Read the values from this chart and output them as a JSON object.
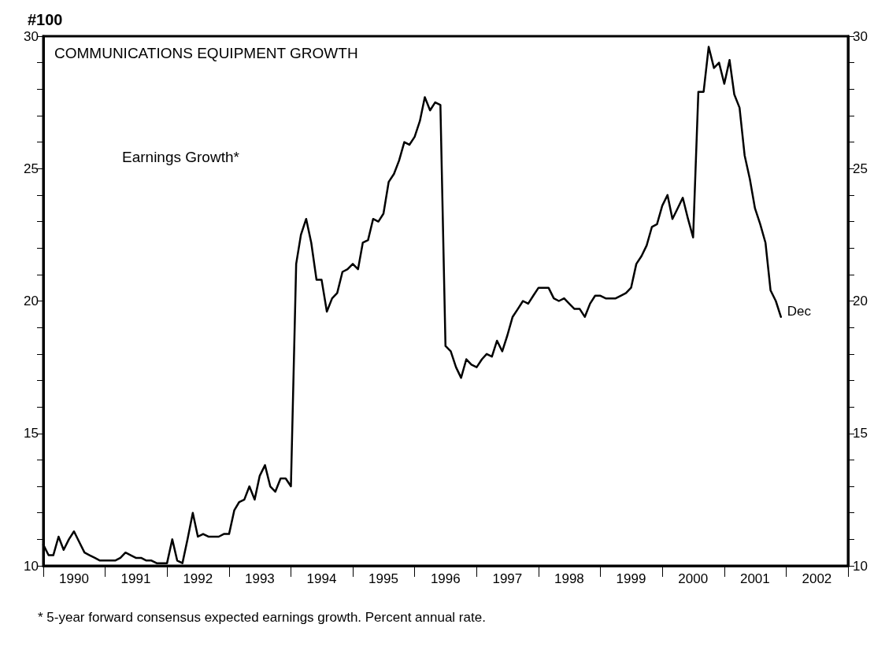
{
  "chart_data": {
    "type": "line",
    "title": "#100",
    "subtitle": "COMMUNICATIONS EQUIPMENT GROWTH",
    "x": [
      "1990-01",
      "1990-02",
      "1990-03",
      "1990-04",
      "1990-05",
      "1990-06",
      "1990-07",
      "1990-08",
      "1990-09",
      "1990-10",
      "1990-11",
      "1990-12",
      "1991-01",
      "1991-02",
      "1991-03",
      "1991-04",
      "1991-05",
      "1991-06",
      "1991-07",
      "1991-08",
      "1991-09",
      "1991-10",
      "1991-11",
      "1991-12",
      "1992-01",
      "1992-02",
      "1992-03",
      "1992-04",
      "1992-05",
      "1992-06",
      "1992-07",
      "1992-08",
      "1992-09",
      "1992-10",
      "1992-11",
      "1992-12",
      "1993-01",
      "1993-02",
      "1993-03",
      "1993-04",
      "1993-05",
      "1993-06",
      "1993-07",
      "1993-08",
      "1993-09",
      "1993-10",
      "1993-11",
      "1993-12",
      "1994-01",
      "1994-02",
      "1994-03",
      "1994-04",
      "1994-05",
      "1994-06",
      "1994-07",
      "1994-08",
      "1994-09",
      "1994-10",
      "1994-11",
      "1994-12",
      "1995-01",
      "1995-02",
      "1995-03",
      "1995-04",
      "1995-05",
      "1995-06",
      "1995-07",
      "1995-08",
      "1995-09",
      "1995-10",
      "1995-11",
      "1995-12",
      "1996-01",
      "1996-02",
      "1996-03",
      "1996-04",
      "1996-05",
      "1996-06",
      "1996-07",
      "1996-08",
      "1996-09",
      "1996-10",
      "1996-11",
      "1996-12",
      "1997-01",
      "1997-02",
      "1997-03",
      "1997-04",
      "1997-05",
      "1997-06",
      "1997-07",
      "1997-08",
      "1997-09",
      "1997-10",
      "1997-11",
      "1997-12",
      "1998-01",
      "1998-02",
      "1998-03",
      "1998-04",
      "1998-05",
      "1998-06",
      "1998-07",
      "1998-08",
      "1998-09",
      "1998-10",
      "1998-11",
      "1998-12",
      "1999-01",
      "1999-02",
      "1999-03",
      "1999-04",
      "1999-05",
      "1999-06",
      "1999-07",
      "1999-08",
      "1999-09",
      "1999-10",
      "1999-11",
      "1999-12",
      "2000-01",
      "2000-02",
      "2000-03",
      "2000-04",
      "2000-05",
      "2000-06",
      "2000-07",
      "2000-08",
      "2000-09",
      "2000-10",
      "2000-11",
      "2000-12",
      "2001-01",
      "2001-02",
      "2001-03",
      "2001-04",
      "2001-05",
      "2001-06",
      "2001-07",
      "2001-08",
      "2001-09",
      "2001-10",
      "2001-11",
      "2001-12"
    ],
    "series": [
      {
        "name": "Earnings Growth*",
        "color": "#000000",
        "values": [
          10.8,
          10.4,
          10.4,
          11.1,
          10.6,
          11.0,
          11.3,
          10.9,
          10.5,
          10.4,
          10.3,
          10.2,
          10.2,
          10.2,
          10.2,
          10.3,
          10.5,
          10.4,
          10.3,
          10.3,
          10.2,
          10.2,
          10.1,
          10.1,
          10.1,
          11.0,
          10.2,
          10.1,
          11.0,
          12.0,
          11.1,
          11.2,
          11.1,
          11.1,
          11.1,
          11.2,
          11.2,
          12.1,
          12.4,
          12.5,
          13.0,
          12.5,
          13.4,
          13.8,
          13.0,
          12.8,
          13.3,
          13.3,
          13.0,
          21.4,
          22.5,
          23.1,
          22.2,
          20.8,
          20.8,
          19.6,
          20.1,
          20.3,
          21.1,
          21.2,
          21.4,
          21.2,
          22.2,
          22.3,
          23.1,
          23.0,
          23.3,
          24.5,
          24.8,
          25.3,
          26.0,
          25.9,
          26.2,
          26.8,
          27.7,
          27.2,
          27.5,
          27.4,
          18.3,
          18.1,
          17.5,
          17.1,
          17.8,
          17.6,
          17.5,
          17.8,
          18.0,
          17.9,
          18.5,
          18.1,
          18.7,
          19.4,
          19.7,
          20.0,
          19.9,
          20.2,
          20.5,
          20.5,
          20.5,
          20.1,
          20.0,
          20.1,
          19.9,
          19.7,
          19.7,
          19.4,
          19.9,
          20.2,
          20.2,
          20.1,
          20.1,
          20.1,
          20.2,
          20.3,
          20.5,
          21.4,
          21.7,
          22.1,
          22.8,
          22.9,
          23.6,
          24.0,
          23.1,
          23.5,
          23.9,
          23.1,
          22.4,
          27.9,
          27.9,
          29.6,
          28.8,
          29.0,
          28.2,
          29.1,
          27.8,
          27.3,
          25.5,
          24.6,
          23.5,
          22.9,
          22.2,
          20.4,
          20.0,
          19.4
        ]
      }
    ],
    "xlim": [
      "1990-01",
      "2003-01"
    ],
    "xticks": [
      {
        "value": "1990-01",
        "label": null
      },
      {
        "value": "1990-07",
        "label": "1990"
      },
      {
        "value": "1991-01",
        "label": null
      },
      {
        "value": "1991-07",
        "label": "1991"
      },
      {
        "value": "1992-01",
        "label": null
      },
      {
        "value": "1992-07",
        "label": "1992"
      },
      {
        "value": "1993-01",
        "label": null
      },
      {
        "value": "1993-07",
        "label": "1993"
      },
      {
        "value": "1994-01",
        "label": null
      },
      {
        "value": "1994-07",
        "label": "1994"
      },
      {
        "value": "1995-01",
        "label": null
      },
      {
        "value": "1995-07",
        "label": "1995"
      },
      {
        "value": "1996-01",
        "label": null
      },
      {
        "value": "1996-07",
        "label": "1996"
      },
      {
        "value": "1997-01",
        "label": null
      },
      {
        "value": "1997-07",
        "label": "1997"
      },
      {
        "value": "1998-01",
        "label": null
      },
      {
        "value": "1998-07",
        "label": "1998"
      },
      {
        "value": "1999-01",
        "label": null
      },
      {
        "value": "1999-07",
        "label": "1999"
      },
      {
        "value": "2000-01",
        "label": null
      },
      {
        "value": "2000-07",
        "label": "2000"
      },
      {
        "value": "2001-01",
        "label": null
      },
      {
        "value": "2001-07",
        "label": "2001"
      },
      {
        "value": "2002-01",
        "label": null
      },
      {
        "value": "2002-07",
        "label": "2002"
      },
      {
        "value": "2003-01",
        "label": null
      }
    ],
    "ylim": [
      10,
      30
    ],
    "yticks": [
      10,
      {
        "value": 11,
        "label": null
      },
      {
        "value": 12,
        "label": null
      },
      {
        "value": 13,
        "label": null
      },
      {
        "value": 14,
        "label": null
      },
      15,
      {
        "value": 16,
        "label": null
      },
      {
        "value": 17,
        "label": null
      },
      {
        "value": 18,
        "label": null
      },
      {
        "value": 19,
        "label": null
      },
      20,
      {
        "value": 21,
        "label": null
      },
      {
        "value": 22,
        "label": null
      },
      {
        "value": 23,
        "label": null
      },
      {
        "value": 24,
        "label": null
      },
      25,
      {
        "value": 26,
        "label": null
      },
      {
        "value": 27,
        "label": null
      },
      {
        "value": 28,
        "label": null
      },
      {
        "value": 29,
        "label": null
      },
      30
    ],
    "y2lim": [
      10,
      30
    ],
    "y2ticks": [
      10,
      {
        "value": 11,
        "label": null
      },
      {
        "value": 12,
        "label": null
      },
      {
        "value": 13,
        "label": null
      },
      {
        "value": 14,
        "label": null
      },
      15,
      {
        "value": 16,
        "label": null
      },
      {
        "value": 17,
        "label": null
      },
      {
        "value": 18,
        "label": null
      },
      {
        "value": 19,
        "label": null
      },
      20,
      {
        "value": 21,
        "label": null
      },
      {
        "value": 22,
        "label": null
      },
      {
        "value": 23,
        "label": null
      },
      {
        "value": 24,
        "label": null
      },
      25,
      {
        "value": 26,
        "label": null
      },
      {
        "value": 27,
        "label": null
      },
      {
        "value": 28,
        "label": null
      },
      {
        "value": 29,
        "label": null
      },
      30
    ],
    "annotations": [
      {
        "text": "Dec",
        "x": "2001-12",
        "y": 19.4
      },
      "* 5-year forward consensus expected earnings growth. Percent annual rate."
    ],
    "grid": false,
    "legend": false,
    "marker": "none",
    "line_style": "solid"
  }
}
